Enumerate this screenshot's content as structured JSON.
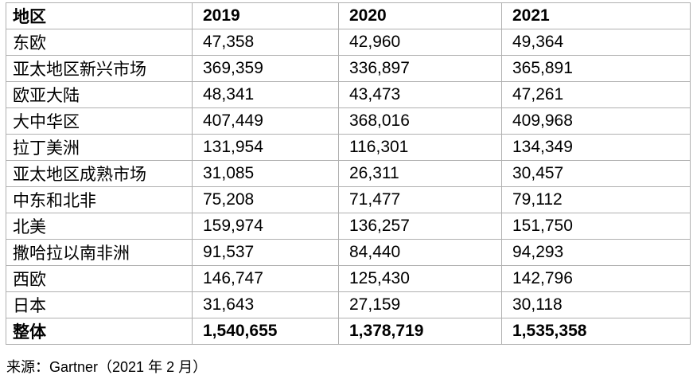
{
  "table": {
    "columns": [
      "地区",
      "2019",
      "2020",
      "2021"
    ],
    "rows": [
      {
        "region": "东欧",
        "values": [
          "47,358",
          "42,960",
          "49,364"
        ]
      },
      {
        "region": "亚太地区新兴市场",
        "values": [
          "369,359",
          "336,897",
          "365,891"
        ]
      },
      {
        "region": "欧亚大陆",
        "values": [
          "48,341",
          "43,473",
          "47,261"
        ]
      },
      {
        "region": "大中华区",
        "values": [
          "407,449",
          "368,016",
          "409,968"
        ]
      },
      {
        "region": "拉丁美洲",
        "values": [
          "131,954",
          "116,301",
          "134,349"
        ]
      },
      {
        "region": "亚太地区成熟市场",
        "values": [
          "31,085",
          "26,311",
          "30,457"
        ]
      },
      {
        "region": "中东和北非",
        "values": [
          "75,208",
          "71,477",
          "79,112"
        ]
      },
      {
        "region": "北美",
        "values": [
          "159,974",
          "136,257",
          "151,750"
        ]
      },
      {
        "region": "撒哈拉以南非洲",
        "values": [
          "91,537",
          "84,440",
          "94,293"
        ]
      },
      {
        "region": "西欧",
        "values": [
          "146,747",
          "125,430",
          "142,796"
        ]
      },
      {
        "region": "日本",
        "values": [
          "31,643",
          "27,159",
          "30,118"
        ]
      }
    ],
    "total_row": {
      "region": "整体",
      "values": [
        "1,540,655",
        "1,378,719",
        "1,535,358"
      ]
    }
  },
  "source": "来源：Gartner（2021 年 2 月）",
  "colors": {
    "border": "#b0b0b0",
    "text": "#000000",
    "background": "#ffffff"
  }
}
